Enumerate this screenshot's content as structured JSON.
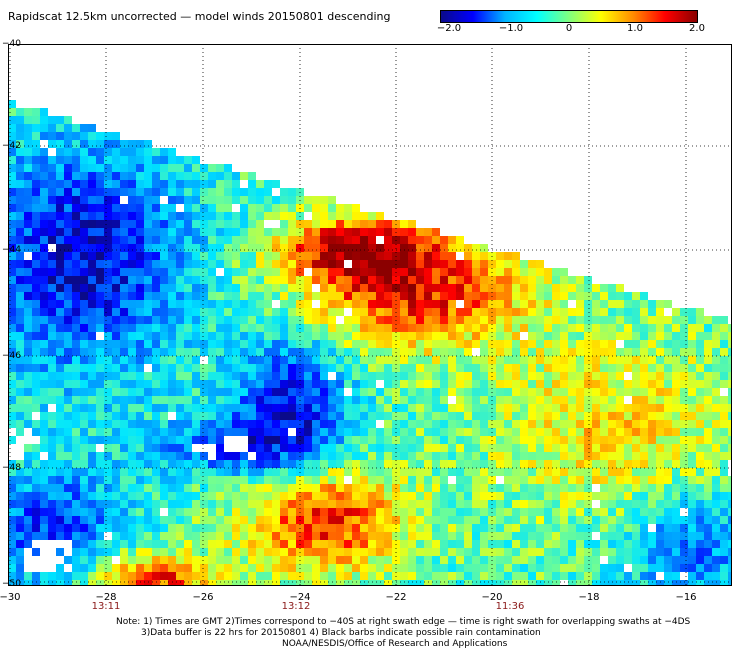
{
  "title": "Rapidscat 12.5km uncorrected — model winds 20150801 descending",
  "colorbar": {
    "ticks": [
      "−2.0",
      "−1.0",
      "0",
      "1.0",
      "2.0"
    ],
    "colors": [
      "#0a0a8a",
      "#0000ff",
      "#00b4ff",
      "#00ffff",
      "#7fff7f",
      "#ffff00",
      "#ff8c00",
      "#ff0000",
      "#8b0000"
    ]
  },
  "map": {
    "x_ticks": [
      "−30",
      "−28",
      "−26",
      "−24",
      "−22",
      "−20",
      "−18",
      "−16"
    ],
    "y_ticks": [
      "−40",
      "−42",
      "−44",
      "−46",
      "−48",
      "−50"
    ],
    "pass_times": [
      "13:11",
      "13:12",
      "11:36"
    ],
    "lon_range": [
      -30,
      -15.3
    ],
    "lat_range": [
      -40,
      -50.6
    ]
  },
  "notes": {
    "line1": "Note: 1) Times are GMT 2)Times correspond to −40S at right swath edge — time is right swath for overlapping swaths at −4DS",
    "line2": "3)Data buffer is 22 hrs for 20150801 4) Black barbs indicate possible rain contamination",
    "line3": "NOAA/NESDIS/Office of Research and Applications"
  }
}
